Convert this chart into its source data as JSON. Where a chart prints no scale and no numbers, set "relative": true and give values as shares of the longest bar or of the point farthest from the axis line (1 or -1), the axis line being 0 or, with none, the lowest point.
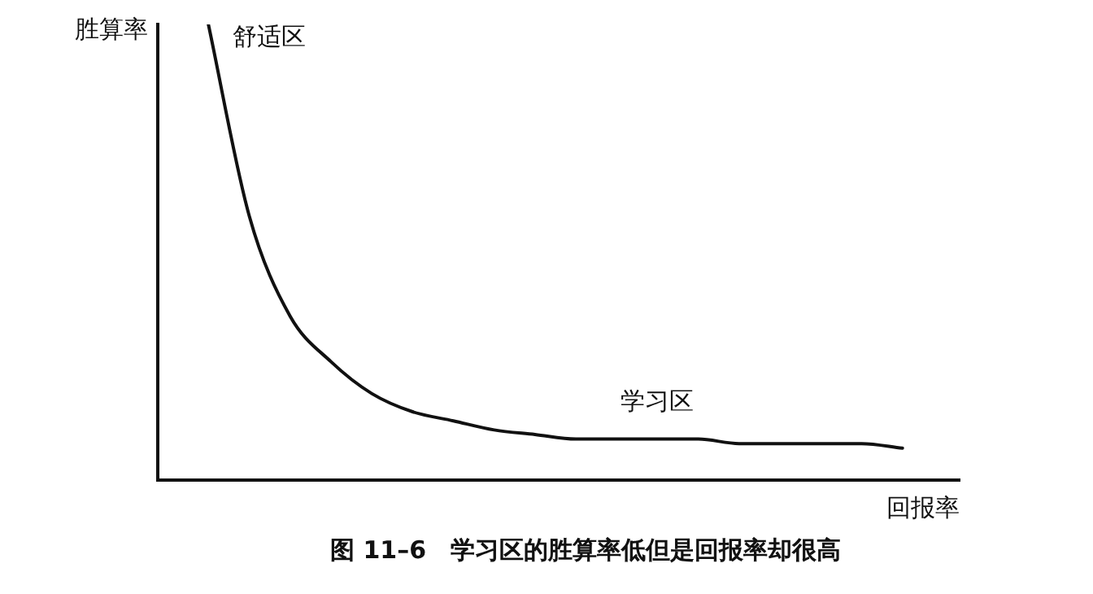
{
  "chart_data": {
    "type": "line",
    "title": "图 11–6　学习区的胜算率低但是回报率却很高",
    "xlabel": "回报率",
    "ylabel": "胜算率",
    "annotations": [
      "舒适区",
      "学习区"
    ],
    "relative": true,
    "categories": [
      null,
      null,
      null,
      null,
      null,
      null,
      null,
      null,
      null,
      null,
      null,
      null,
      null,
      null,
      null,
      null,
      null,
      null
    ],
    "series": [
      {
        "color": "#111111",
        "values": [
          1,
          0.58,
          0.36,
          0.26,
          0.19,
          0.15,
          0.13,
          0.11,
          0.1,
          0.09,
          0.09,
          0.09,
          0.09,
          0.08,
          0.08,
          0.08,
          0.08,
          0.07
        ]
      }
    ],
    "grid": false,
    "legend": false,
    "marker": "none",
    "line_style": "solid"
  }
}
